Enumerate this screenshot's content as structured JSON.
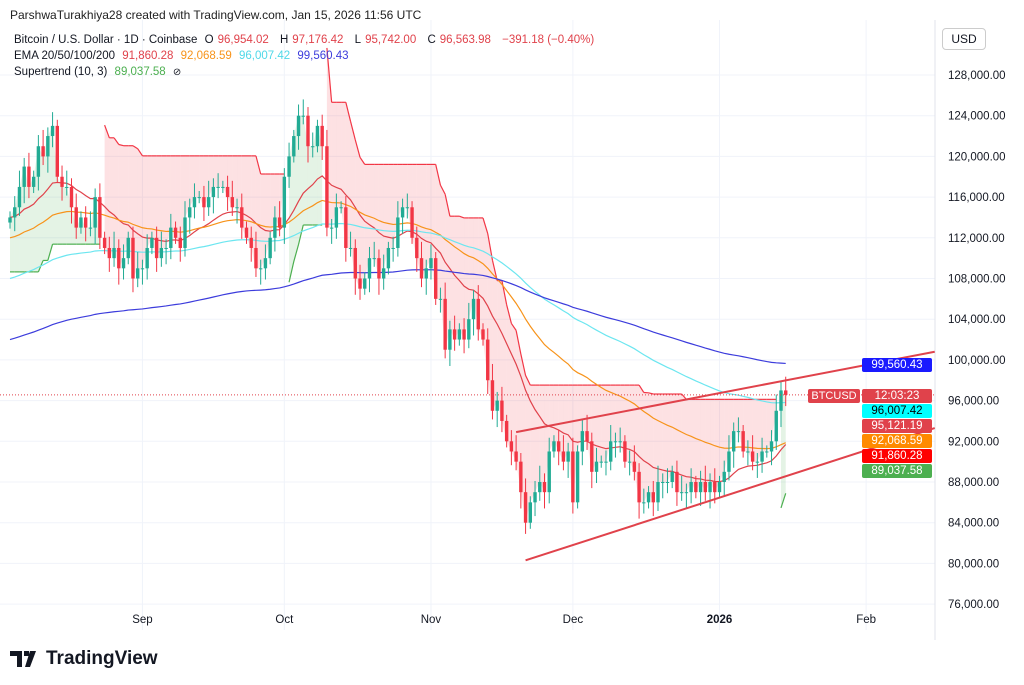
{
  "credit": "ParshwaTurakhiya28 created with TradingView.com, Jan 15, 2026 11:56 UTC",
  "legend": {
    "symbol": "Bitcoin / U.S. Dollar · 1D · Coinbase",
    "o_label": "O",
    "o": "96,954.02",
    "h_label": "H",
    "h": "97,176.42",
    "l_label": "L",
    "l": "95,742.00",
    "c_label": "C",
    "c": "96,563.98",
    "change": "−391.18 (−0.40%)",
    "ema_label": "EMA 20/50/100/200",
    "ema20": "91,860.28",
    "ema50": "92,068.59",
    "ema100": "96,007.42",
    "ema200": "99,560.43",
    "st_label": "Supertrend (10, 3)",
    "st": "89,037.58",
    "st_icon": "eye-off-icon"
  },
  "currency": "USD",
  "logo": "TradingView",
  "colors": {
    "up": "#22ab94",
    "down": "#f23645",
    "ema20": "#e0424b",
    "ema50": "#f7931a",
    "ema100": "#6ce6f0",
    "ema200": "#3c3cdc",
    "st_up": "#4caf50",
    "st_down": "#f23645",
    "wedge": "#e0424b"
  },
  "badges": [
    {
      "text": "99,560.43",
      "bg": "#1a1aff",
      "fg": "#fff"
    },
    {
      "text": "12:03:23",
      "bg": "#e0424b",
      "fg": "#fff"
    },
    {
      "text": "96,007.42",
      "bg": "#00ffff",
      "fg": "#000"
    },
    {
      "text": "95,121.19",
      "bg": "#e0424b",
      "fg": "#fff"
    },
    {
      "text": "92,068.59",
      "bg": "#ff8a00",
      "fg": "#fff"
    },
    {
      "text": "91,860.28",
      "bg": "#ff0000",
      "fg": "#fff"
    },
    {
      "text": "89,037.58",
      "bg": "#4caf50",
      "fg": "#fff"
    }
  ],
  "btc_label": "BTCUSD",
  "chart_data": {
    "type": "candlestick",
    "title": "Bitcoin / U.S. Dollar · 1D · Coinbase",
    "first_date": "2025-08-04",
    "ylim": [
      76000,
      130000
    ],
    "yticks": [
      "76,000.00",
      "80,000.00",
      "84,000.00",
      "88,000.00",
      "92,000.00",
      "96,000.00",
      "100,000.00",
      "104,000.00",
      "108,000.00",
      "112,000.00",
      "116,000.00",
      "120,000.00",
      "124,000.00",
      "128,000.00"
    ],
    "ytick_values": [
      76000,
      80000,
      84000,
      88000,
      92000,
      96000,
      100000,
      104000,
      108000,
      112000,
      116000,
      120000,
      124000,
      128000
    ],
    "xticks": [
      {
        "label": "Sep",
        "day": 28
      },
      {
        "label": "Oct",
        "day": 58
      },
      {
        "label": "Nov",
        "day": 89
      },
      {
        "label": "Dec",
        "day": 119
      },
      {
        "label": "2026",
        "day": 150
      },
      {
        "label": "Feb",
        "day": 181
      }
    ],
    "closes_k": [
      114,
      115,
      117,
      119,
      117,
      118,
      121,
      120,
      122,
      123,
      118,
      117,
      117,
      115,
      113,
      114,
      113,
      113,
      116,
      112,
      111,
      110,
      111,
      109,
      110,
      112,
      108,
      109,
      109,
      111,
      112,
      110,
      111,
      111,
      113,
      112,
      111,
      114,
      115,
      116,
      116,
      115,
      116,
      117,
      117,
      117,
      116,
      115,
      115,
      113,
      112,
      111,
      109,
      109,
      110,
      112,
      114,
      113,
      118,
      120,
      122,
      124,
      124,
      121,
      121,
      123,
      121,
      113,
      113,
      115,
      115,
      111,
      111,
      108,
      107,
      108,
      110,
      110,
      108,
      109,
      111,
      111,
      114,
      115,
      115,
      112,
      110,
      108,
      109,
      110,
      106,
      106,
      101,
      103,
      102,
      103,
      102,
      104,
      106,
      103,
      102,
      98,
      95,
      96,
      94,
      92,
      91,
      90,
      87,
      84,
      86,
      87,
      88,
      87,
      91,
      92,
      91,
      90,
      91,
      86,
      91,
      93,
      92,
      89,
      90,
      90,
      90,
      92,
      92,
      92,
      90,
      90,
      89,
      86,
      86,
      87,
      86,
      88,
      88,
      88,
      89,
      87,
      87,
      87,
      88,
      87,
      88,
      87,
      88,
      87,
      88,
      89,
      91,
      93,
      93,
      91,
      91,
      90,
      90,
      91,
      91,
      92,
      95,
      97,
      96.56
    ],
    "last_price": 96563.98,
    "ema_periods": [
      20,
      50,
      100,
      200
    ],
    "supertrend": {
      "period": 10,
      "multiplier": 3
    },
    "wedge": [
      {
        "start_day": 107,
        "start_price": 92900,
        "end_day": 195.5,
        "end_price": 100800
      },
      {
        "start_day": 109,
        "start_price": 80300,
        "end_day": 195.5,
        "end_price": 93300
      }
    ]
  }
}
